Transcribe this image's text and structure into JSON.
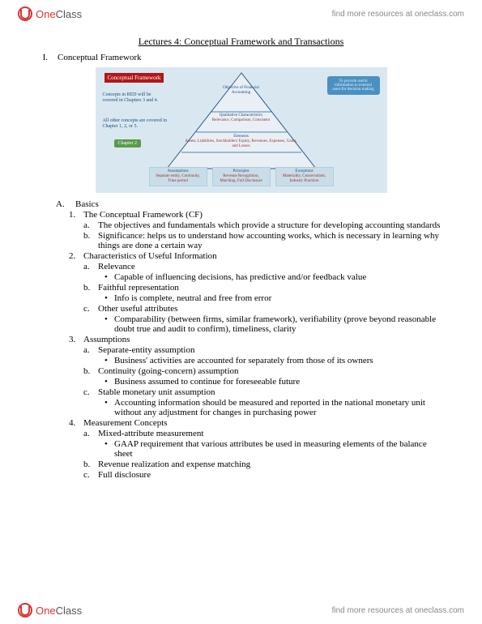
{
  "brand": {
    "name_a": "One",
    "name_b": "Class",
    "tagline": "find more resources at oneclass.com"
  },
  "title": "Lectures 4: Conceptual Framework and Transactions",
  "outline": {
    "roman": "I.",
    "heading": "Conceptual Framework"
  },
  "diagram": {
    "background": "#d9e8f0",
    "red_header": "Conceptual Framework",
    "sidenote1": "Concepts in RED will be covered in Chapters 3 and 4.",
    "sidenote2": "All other concepts are covered in Chapter 1, 2, or 5.",
    "callout_blue": "To provide useful information to external users for decision making",
    "green_tab": "Chapter 2",
    "layers": {
      "top": {
        "title": "Objective of Financial Accounting"
      },
      "qual": {
        "title": "Qualitative Characteristics",
        "sub": "Relevance, Comparison, Consistent"
      },
      "elements": {
        "title": "Elements",
        "sub": "Assets, Liabilities, Stockholders' Equity, Revenues, Expenses, Gains, and Losses"
      },
      "bottom": {
        "assumptions": {
          "title": "Assumptions",
          "sub": "Separate entity, Continuity, Time period"
        },
        "principles": {
          "title": "Principles",
          "sub": "Revenue Recognition, Matching, Full Disclosure"
        },
        "exceptions": {
          "title": "Exceptions",
          "sub": "Materiality, Conservatism, Industry Practices"
        }
      }
    },
    "colors": {
      "headerbg": "#b01717",
      "blue": "#4a90c2",
      "green": "#5a9a4a",
      "tri_border": "#2a5a8a"
    }
  },
  "sections": {
    "A_label": "A.",
    "A_title": "Basics",
    "items": [
      {
        "num": "1",
        "title": "The Conceptual Framework (CF)",
        "subs": [
          {
            "let": "a",
            "text": "The objectives and fundamentals which provide a structure for developing accounting standards"
          },
          {
            "let": "b",
            "text": "Significance: helps us to understand how accounting works, which is necessary in learning why things are done a certain way"
          }
        ]
      },
      {
        "num": "2",
        "title": "Characteristics of Useful Information",
        "subs": [
          {
            "let": "a",
            "text": "Relevance",
            "bullets": [
              "Capable of influencing decisions, has predictive and/or feedback value"
            ]
          },
          {
            "let": "b",
            "text": "Faithful representation",
            "bullets": [
              "Info is complete, neutral and free from error"
            ]
          },
          {
            "let": "c",
            "text": "Other useful attributes",
            "bullets": [
              "Comparability (between firms, similar framework), verifiability (prove beyond reasonable doubt true and audit to confirm), timeliness, clarity"
            ]
          }
        ]
      },
      {
        "num": "3",
        "title": "Assumptions",
        "subs": [
          {
            "let": "a",
            "text": "Separate-entity assumption",
            "bullets": [
              "Business' activities are accounted for separately from those of its owners"
            ]
          },
          {
            "let": "b",
            "text": "Continuity (going-concern) assumption",
            "bullets": [
              "Business assumed to continue for foreseeable future"
            ]
          },
          {
            "let": "c",
            "text": "Stable monetary unit assumption",
            "bullets": [
              "Accounting information should be measured and reported in the national monetary unit without any adjustment for changes in purchasing power"
            ]
          }
        ]
      },
      {
        "num": "4",
        "title": "Measurement Concepts",
        "subs": [
          {
            "let": "a",
            "text": "Mixed-attribute measurement",
            "bullets": [
              "GAAP requirement that various attributes be used in measuring elements of the balance sheet"
            ]
          },
          {
            "let": "b",
            "text": "Revenue realization and expense matching"
          },
          {
            "let": "c",
            "text": "Full disclosure"
          }
        ]
      }
    ]
  }
}
